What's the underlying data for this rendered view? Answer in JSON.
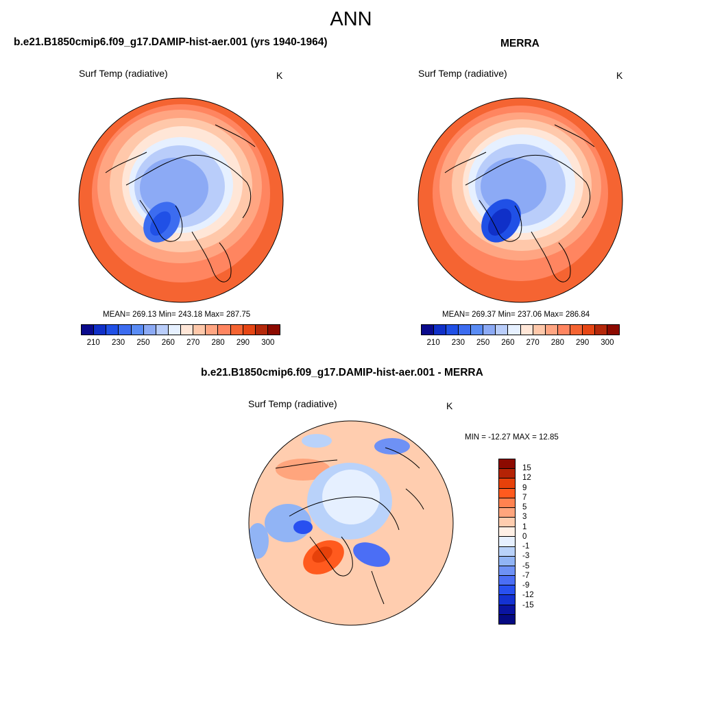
{
  "figure": {
    "season": "ANN"
  },
  "panels": {
    "model": {
      "title": "b.e21.B1850cmip6.f09_g17.DAMIP-hist-aer.001 (yrs 1940-1964)",
      "variable": "Surf Temp (radiative)",
      "units": "K",
      "stats": "MEAN= 269.13  Min= 243.18  Max= 287.75",
      "mean": 269.13,
      "min": 243.18,
      "max": 287.75
    },
    "obs": {
      "title": "MERRA",
      "variable": "Surf Temp (radiative)",
      "units": "K",
      "stats": "MEAN= 269.37  Min= 237.06  Max= 286.84",
      "mean": 269.37,
      "min": 237.06,
      "max": 286.84
    },
    "diff": {
      "title": "b.e21.B1850cmip6.f09_g17.DAMIP-hist-aer.001 - MERRA",
      "variable": "Surf Temp (radiative)",
      "units": "K",
      "stats": "MIN = -12.27 MAX =  12.85",
      "min": -12.27,
      "max": 12.85
    }
  },
  "colorbars": {
    "absolute": {
      "colors": [
        "#0a0a8c",
        "#1030c8",
        "#2050e6",
        "#3c6cf0",
        "#5a8cf5",
        "#8caaf5",
        "#b9cdfa",
        "#e6f0ff",
        "#ffe6d7",
        "#ffc8aa",
        "#ffa582",
        "#ff8560",
        "#f56432",
        "#e64614",
        "#b4280a",
        "#8c0a00"
      ],
      "tick_labels": [
        "210",
        "230",
        "250",
        "260",
        "270",
        "280",
        "290",
        "300"
      ]
    },
    "difference": {
      "colors": [
        "#8c0a00",
        "#b42305",
        "#e6410a",
        "#ff5a1e",
        "#ff8250",
        "#ffa57d",
        "#ffcdaf",
        "#fff0e6",
        "#e6f0ff",
        "#b9d2fa",
        "#91b4f5",
        "#6e91f5",
        "#4b6ef5",
        "#2850f0",
        "#1432d2",
        "#0a14a0",
        "#050a82"
      ],
      "tick_labels": [
        "15",
        "12",
        "9",
        "7",
        "5",
        "3",
        "1",
        "0",
        "-1",
        "-3",
        "-5",
        "-7",
        "-9",
        "-12",
        "-15"
      ]
    }
  },
  "colors": {
    "background": "#ffffff",
    "coastline": "#000000"
  }
}
